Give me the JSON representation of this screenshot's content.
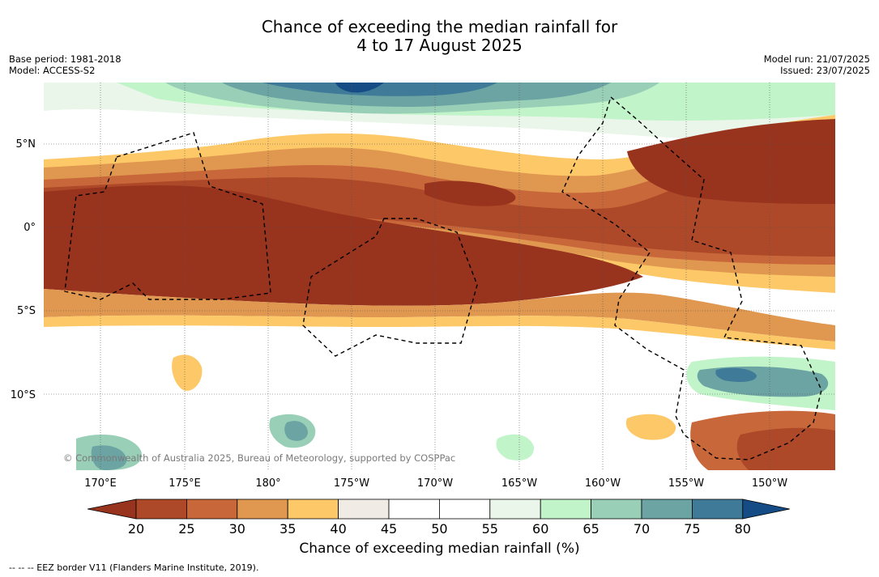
{
  "title_line1": "Chance of exceeding the median rainfall for",
  "title_line2": "4 to 17 August 2025",
  "meta_left": [
    "Base period: 1981-2018",
    "Model: ACCESS-S2"
  ],
  "meta_right": [
    "Model run: 21/07/2025",
    "Issued: 23/07/2025"
  ],
  "y_labels": [
    "5°N",
    "0°",
    "5°S",
    "10°S"
  ],
  "x_labels": [
    "170°E",
    "175°E",
    "180°",
    "175°W",
    "170°W",
    "165°W",
    "160°W",
    "155°W",
    "150°W"
  ],
  "credit": "© Commonwealth of Australia 2025, Bureau of Meteorology, supported by COSPPac",
  "colorbar": {
    "ticks": [
      "20",
      "25",
      "30",
      "35",
      "40",
      "45",
      "50",
      "55",
      "60",
      "65",
      "70",
      "75",
      "80"
    ],
    "colors": [
      "#98331e",
      "#ad4828",
      "#c8683a",
      "#e0974f",
      "#fdc868",
      "#f0ebe5",
      "#ffffff",
      "#ffffff",
      "#e9f6e9",
      "#c2f4ca",
      "#99cfb7",
      "#6ba4a3",
      "#3f7a98",
      "#154c86"
    ],
    "title": "Chance of exceeding median rainfall (%)"
  },
  "footer": "--  --  -- EEZ border V11 (Flanders Marine Institute, 2019)."
}
